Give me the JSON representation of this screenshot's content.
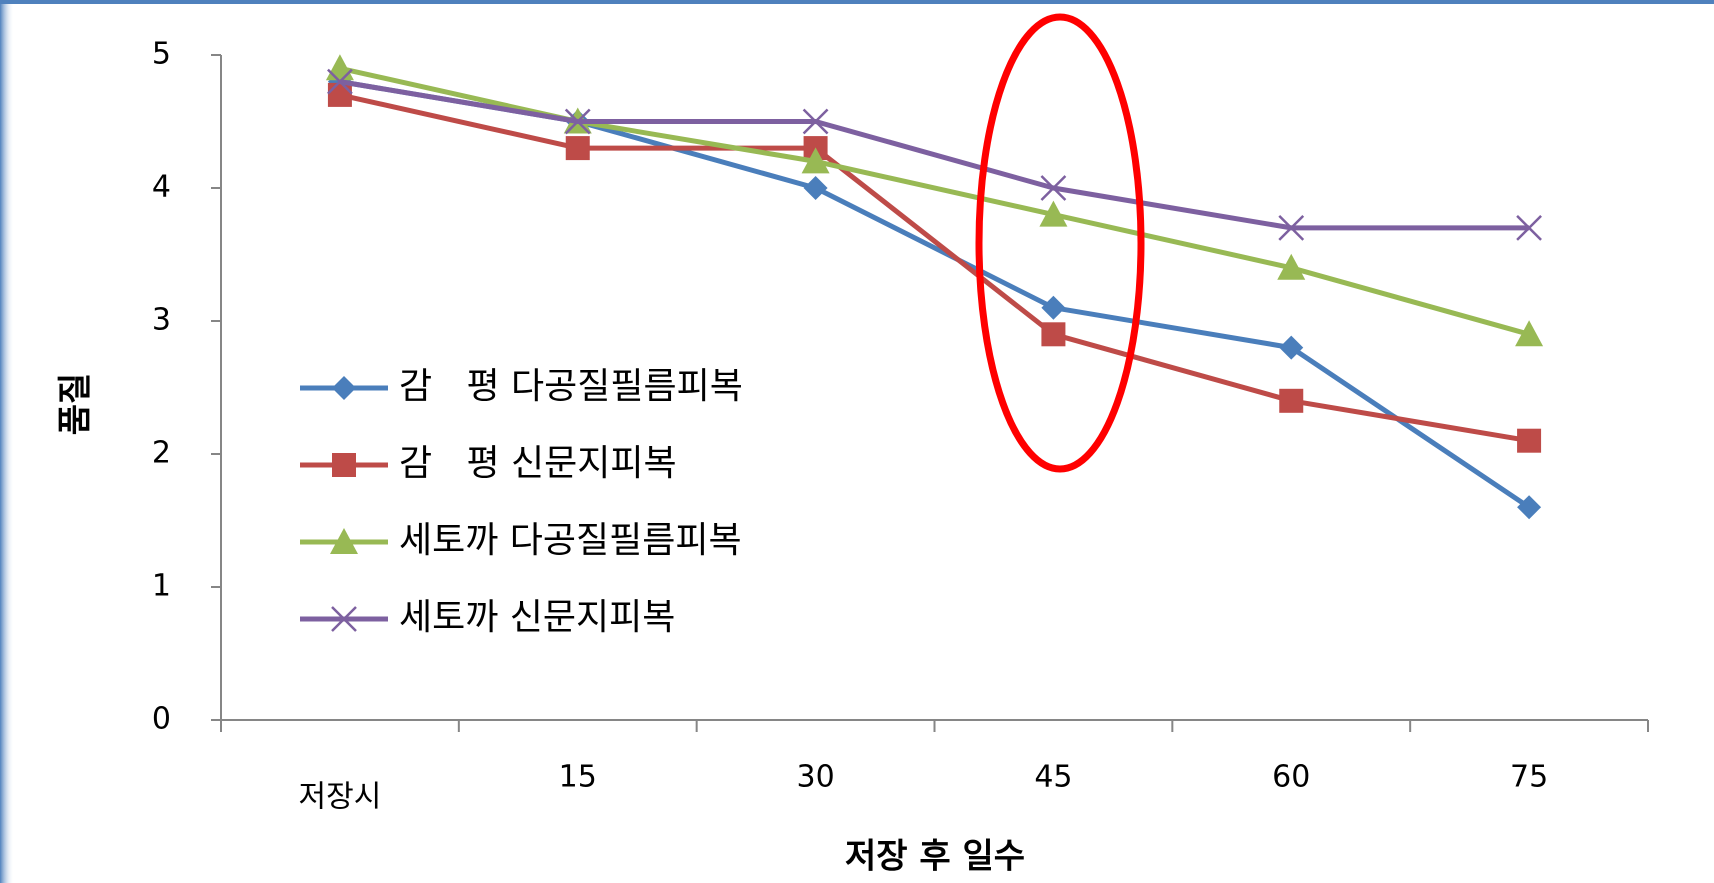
{
  "chart_data": {
    "type": "line",
    "categories": [
      "저장시",
      "15",
      "30",
      "45",
      "60",
      "75"
    ],
    "xlabel": "저장 후 일수",
    "ylabel": "품질",
    "ylim": [
      0,
      5
    ],
    "yticks": [
      0,
      1,
      2,
      3,
      4,
      5
    ],
    "series": [
      {
        "name": "감   평 다공질필름피복",
        "color": "#4a7ebb",
        "marker": "diamond",
        "values": [
          4.8,
          4.5,
          4.0,
          3.1,
          2.8,
          1.6
        ]
      },
      {
        "name": "감   평 신문지피복",
        "color": "#be4b48",
        "marker": "square",
        "values": [
          4.7,
          4.3,
          4.3,
          2.9,
          2.4,
          2.1
        ]
      },
      {
        "name": "세토까 다공질필름피복",
        "color": "#98b954",
        "marker": "triangle",
        "values": [
          4.9,
          4.5,
          4.2,
          3.8,
          3.4,
          2.9
        ]
      },
      {
        "name": "세토까 신문지피복",
        "color": "#7d60a0",
        "marker": "x",
        "values": [
          4.8,
          4.5,
          4.5,
          4.0,
          3.7,
          3.7
        ]
      }
    ]
  }
}
